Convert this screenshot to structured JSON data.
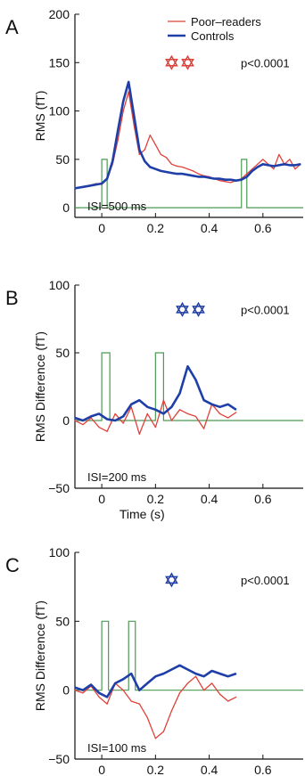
{
  "colors": {
    "poor_readers": "#e0413a",
    "controls": "#1f3fa8",
    "stimulus": "#4c9a55",
    "axis": "#111111"
  },
  "chart_data": [
    {
      "panel_label": "A",
      "type": "line",
      "ylabel": "RMS (fT)",
      "xlabel": "",
      "xlim": [
        -0.1,
        0.75
      ],
      "ylim": [
        -10,
        200
      ],
      "xticks": [
        "0",
        "0.2",
        "0.4",
        "0.6"
      ],
      "xtick_values": [
        0,
        0.2,
        0.4,
        0.6
      ],
      "yticks": [
        "0",
        "50",
        "100",
        "150",
        "200"
      ],
      "ytick_values": [
        0,
        50,
        100,
        150,
        200
      ],
      "annotation": "ISI=500 ms",
      "pvalue": "p<0.0001",
      "legend": [
        "Poor–readers",
        "Controls"
      ],
      "star_color": "poor_readers",
      "star_x": [
        0.26,
        0.32
      ],
      "star_y": 150,
      "stimulus": {
        "baseline": 0,
        "height": 50,
        "onsets": [
          0,
          0.52
        ],
        "width": 0.02
      },
      "series": [
        {
          "name": "Poor–readers",
          "color": "poor_readers",
          "x": [
            -0.1,
            -0.06,
            -0.02,
            0.0,
            0.02,
            0.04,
            0.06,
            0.08,
            0.1,
            0.12,
            0.14,
            0.16,
            0.18,
            0.2,
            0.22,
            0.24,
            0.26,
            0.28,
            0.3,
            0.32,
            0.34,
            0.36,
            0.38,
            0.4,
            0.42,
            0.44,
            0.46,
            0.48,
            0.5,
            0.52,
            0.54,
            0.56,
            0.58,
            0.6,
            0.62,
            0.64,
            0.66,
            0.68,
            0.7,
            0.72,
            0.74
          ],
          "y": [
            20,
            22,
            25,
            24,
            30,
            45,
            70,
            100,
            120,
            85,
            55,
            60,
            75,
            65,
            55,
            52,
            45,
            43,
            42,
            40,
            38,
            35,
            33,
            32,
            30,
            28,
            27,
            26,
            28,
            30,
            35,
            40,
            45,
            50,
            45,
            40,
            55,
            45,
            50,
            40,
            45
          ]
        },
        {
          "name": "Controls",
          "color": "controls",
          "x": [
            -0.1,
            -0.06,
            -0.02,
            0.0,
            0.02,
            0.04,
            0.06,
            0.08,
            0.1,
            0.12,
            0.14,
            0.16,
            0.18,
            0.2,
            0.22,
            0.24,
            0.26,
            0.28,
            0.3,
            0.32,
            0.34,
            0.36,
            0.38,
            0.4,
            0.42,
            0.44,
            0.46,
            0.48,
            0.5,
            0.52,
            0.54,
            0.56,
            0.58,
            0.6,
            0.62,
            0.64,
            0.66,
            0.68,
            0.7,
            0.72,
            0.74
          ],
          "y": [
            20,
            22,
            24,
            25,
            30,
            48,
            80,
            110,
            130,
            95,
            60,
            48,
            42,
            40,
            38,
            37,
            36,
            35,
            35,
            34,
            33,
            32,
            32,
            31,
            30,
            30,
            29,
            29,
            28,
            29,
            32,
            38,
            42,
            45,
            44,
            43,
            44,
            45,
            44,
            44,
            45
          ]
        }
      ]
    },
    {
      "panel_label": "B",
      "type": "line",
      "ylabel": "RMS Difference (fT)",
      "xlabel": "Time (s)",
      "xlim": [
        -0.1,
        0.75
      ],
      "ylim": [
        -50,
        100
      ],
      "xticks": [
        "0",
        "0.2",
        "0.4",
        "0.6"
      ],
      "xtick_values": [
        0,
        0.2,
        0.4,
        0.6
      ],
      "yticks": [
        "−50",
        "0",
        "50",
        "100"
      ],
      "ytick_values": [
        -50,
        0,
        50,
        100
      ],
      "annotation": "ISI=200 ms",
      "pvalue": "p<0.0001",
      "legend": [],
      "star_color": "controls",
      "star_x": [
        0.3,
        0.36
      ],
      "star_y": 82,
      "stimulus": {
        "baseline": 0,
        "height": 50,
        "onsets": [
          0,
          0.2
        ],
        "width": 0.03
      },
      "series": [
        {
          "name": "Poor–readers",
          "color": "poor_readers",
          "x": [
            -0.1,
            -0.07,
            -0.04,
            -0.01,
            0.02,
            0.05,
            0.08,
            0.11,
            0.14,
            0.17,
            0.2,
            0.23,
            0.26,
            0.29,
            0.32,
            0.35,
            0.38,
            0.41,
            0.44,
            0.47,
            0.5
          ],
          "y": [
            0,
            -3,
            2,
            -5,
            -8,
            5,
            -2,
            10,
            -10,
            5,
            -5,
            15,
            0,
            8,
            5,
            3,
            -6,
            12,
            5,
            2,
            6
          ]
        },
        {
          "name": "Controls",
          "color": "controls",
          "x": [
            -0.1,
            -0.07,
            -0.04,
            -0.01,
            0.02,
            0.05,
            0.08,
            0.11,
            0.14,
            0.17,
            0.2,
            0.23,
            0.26,
            0.29,
            0.32,
            0.35,
            0.38,
            0.41,
            0.44,
            0.47,
            0.5
          ],
          "y": [
            2,
            0,
            3,
            5,
            1,
            0,
            3,
            12,
            15,
            10,
            8,
            5,
            10,
            20,
            40,
            30,
            15,
            12,
            10,
            12,
            8
          ]
        }
      ]
    },
    {
      "panel_label": "C",
      "type": "line",
      "ylabel": "RMS Difference (fT)",
      "xlabel": "",
      "xlim": [
        -0.1,
        0.75
      ],
      "ylim": [
        -50,
        100
      ],
      "xticks": [
        "0",
        "0.2",
        "0.4",
        "0.6"
      ],
      "xtick_values": [
        0,
        0.2,
        0.4,
        0.6
      ],
      "yticks": [
        "−50",
        "0",
        "50",
        "100"
      ],
      "ytick_values": [
        -50,
        0,
        50,
        100
      ],
      "annotation": "ISI=100 ms",
      "pvalue": "p<0.0001",
      "legend": [],
      "star_color": "controls",
      "star_x": [
        0.26
      ],
      "star_y": 80,
      "stimulus": {
        "baseline": 0,
        "height": 50,
        "onsets": [
          0,
          0.1
        ],
        "width": 0.025
      },
      "series": [
        {
          "name": "Poor–readers",
          "color": "poor_readers",
          "x": [
            -0.1,
            -0.07,
            -0.04,
            -0.01,
            0.02,
            0.05,
            0.08,
            0.11,
            0.14,
            0.17,
            0.2,
            0.23,
            0.26,
            0.29,
            0.32,
            0.35,
            0.38,
            0.41,
            0.44,
            0.47,
            0.5
          ],
          "y": [
            0,
            -2,
            3,
            -5,
            -10,
            5,
            0,
            -8,
            -10,
            -20,
            -35,
            -30,
            -15,
            -2,
            5,
            10,
            0,
            5,
            -3,
            -8,
            -5
          ]
        },
        {
          "name": "Controls",
          "color": "controls",
          "x": [
            -0.1,
            -0.07,
            -0.04,
            -0.01,
            0.02,
            0.05,
            0.08,
            0.11,
            0.14,
            0.17,
            0.2,
            0.23,
            0.26,
            0.29,
            0.32,
            0.35,
            0.38,
            0.41,
            0.44,
            0.47,
            0.5
          ],
          "y": [
            2,
            0,
            4,
            -2,
            -5,
            5,
            8,
            12,
            0,
            5,
            10,
            12,
            15,
            18,
            15,
            12,
            10,
            14,
            12,
            10,
            12
          ]
        }
      ]
    }
  ]
}
